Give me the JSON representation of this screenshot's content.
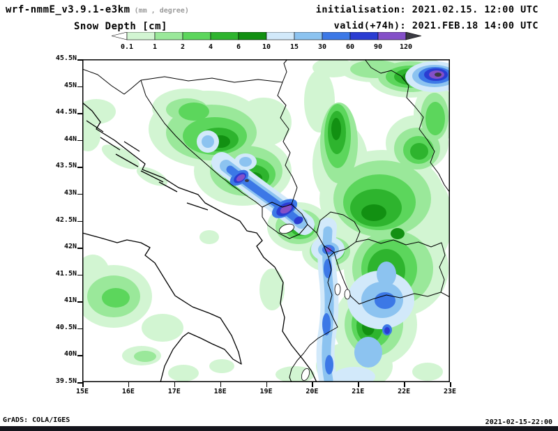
{
  "header": {
    "model": "wrf-nmmE_v3.9.1-e3km",
    "units_note": "(mm , degree)",
    "variable": "Snow Depth [cm]",
    "init": "initialisation: 2021.02.15.  12:00 UTC",
    "valid": "valid(+74h): 2021.FEB.18 14:00 UTC"
  },
  "legend": {
    "labels": [
      "0.1",
      "1",
      "2",
      "4",
      "6",
      "10",
      "15",
      "30",
      "60",
      "90",
      "120"
    ],
    "colors": [
      "#ffffff",
      "#d2f5d2",
      "#9ae89a",
      "#5cd65c",
      "#2eb42e",
      "#129012",
      "#d2e9fa",
      "#8cc3f0",
      "#3c78e6",
      "#2a3cd2",
      "#8450c8",
      "#3a3a42"
    ]
  },
  "map": {
    "lat_ticks": [
      "45.5N",
      "45N",
      "44.5N",
      "44N",
      "43.5N",
      "43N",
      "42.5N",
      "42N",
      "41.5N",
      "41N",
      "40.5N",
      "40N",
      "39.5N"
    ],
    "lon_ticks": [
      "15E",
      "16E",
      "17E",
      "18E",
      "19E",
      "20E",
      "21E",
      "22E",
      "23E"
    ]
  },
  "footer": {
    "left": "GrADS: COLA/IGES",
    "right": "2021-02-15-22:00"
  }
}
